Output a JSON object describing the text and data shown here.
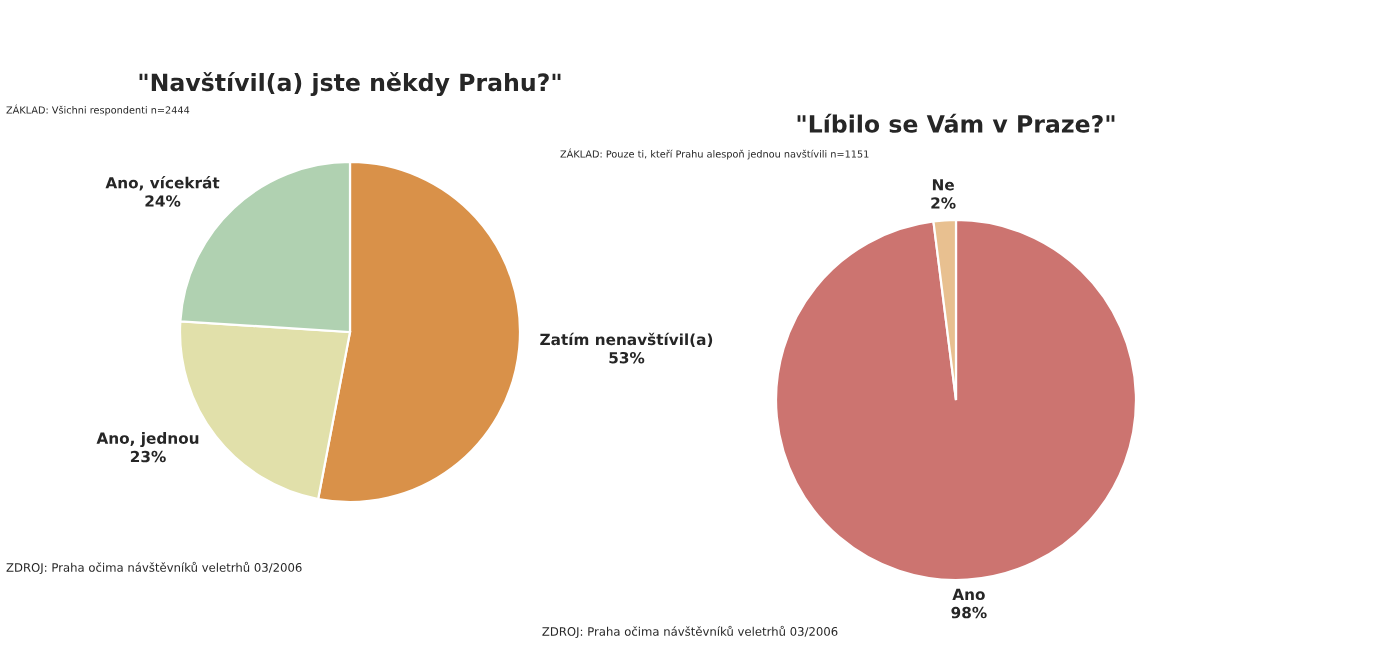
{
  "chart_data": [
    {
      "type": "pie",
      "title": "\"Navštívil(a) jste někdy Prahu?\"",
      "subtitle": "ZÁKLAD: Všichni respondenti n=2444",
      "categories": [
        "Zatím nenavštívil(a)",
        "Ano, jednou",
        "Ano, vícekrát"
      ],
      "values": [
        53,
        23,
        24
      ],
      "value_labels": [
        "53%",
        "23%",
        "24%"
      ],
      "colors": [
        "#d99149",
        "#e1e0aa",
        "#b0d1b1"
      ],
      "annotations": [
        "ZDROJ: Praha očima návštěvníků veletrhů 03/2006"
      ]
    },
    {
      "type": "pie",
      "title": "\"Líbilo se Vám v Praze?\"",
      "subtitle": "ZÁKLAD: Pouze ti, kteří Prahu alespoň jednou navštívili n=1151",
      "categories": [
        "Ano",
        "Ne"
      ],
      "values": [
        98,
        2
      ],
      "value_labels": [
        "98%",
        "2%"
      ],
      "colors": [
        "#cc7470",
        "#e8c090"
      ],
      "annotations": [
        "ZDROJ: Praha očima návštěvníků veletrhů 03/2006"
      ]
    }
  ]
}
